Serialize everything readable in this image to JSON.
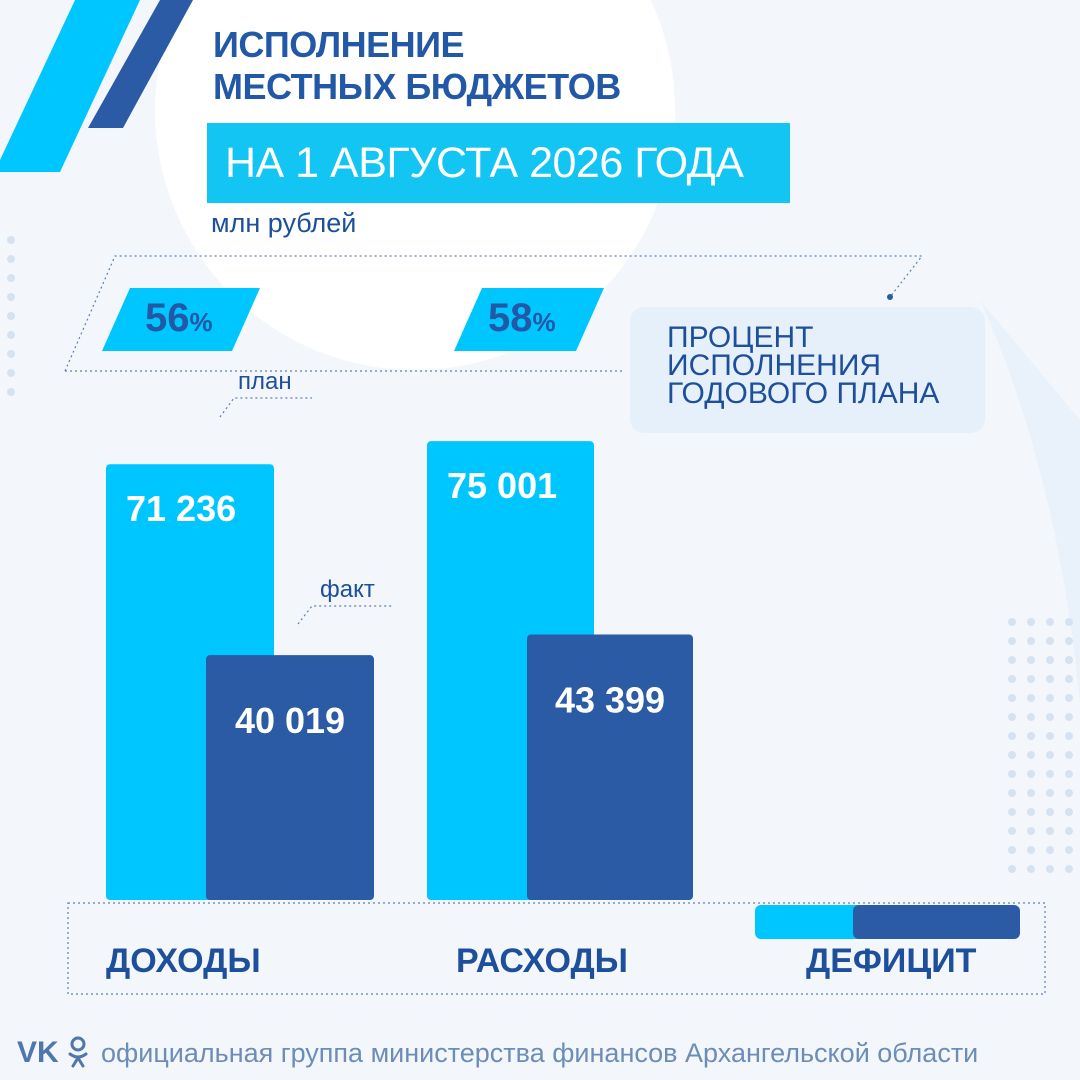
{
  "title": {
    "line1": "ИСПОЛНЕНИЕ",
    "line2": "МЕСТНЫХ БЮДЖЕТОВ"
  },
  "date_banner": "НА 1 АВГУСТА 2026 ГОДА",
  "unit": "млн рублей",
  "legend": {
    "line1": "ПРОЦЕНТ",
    "line2": "ИСПОЛНЕНИЯ",
    "line3": "ГОДОВОГО ПЛАНА"
  },
  "footer": {
    "text": "официальная группа министерства финансов Архангельской области",
    "vk_icon": "vk-icon",
    "ok_icon": "odnoklassniki-icon"
  },
  "colors": {
    "plan": "#00c6ff",
    "fact": "#2a5ba4",
    "text": "#1d4f9a"
  },
  "chart_data": {
    "type": "bar",
    "categories": [
      "ДОХОДЫ",
      "РАСХОДЫ",
      "ДЕФИЦИТ"
    ],
    "series": [
      {
        "name": "план",
        "values": [
          71236,
          75001,
          null
        ],
        "labels": [
          "71 236",
          "75 001",
          ""
        ]
      },
      {
        "name": "факт",
        "values": [
          40019,
          43399,
          null
        ],
        "labels": [
          "40 019",
          "43 399",
          ""
        ]
      }
    ],
    "percent_of_plan": [
      {
        "value": "56",
        "unit": "%"
      },
      {
        "value": "58",
        "unit": "%"
      }
    ],
    "ylim": [
      0,
      85000
    ]
  }
}
